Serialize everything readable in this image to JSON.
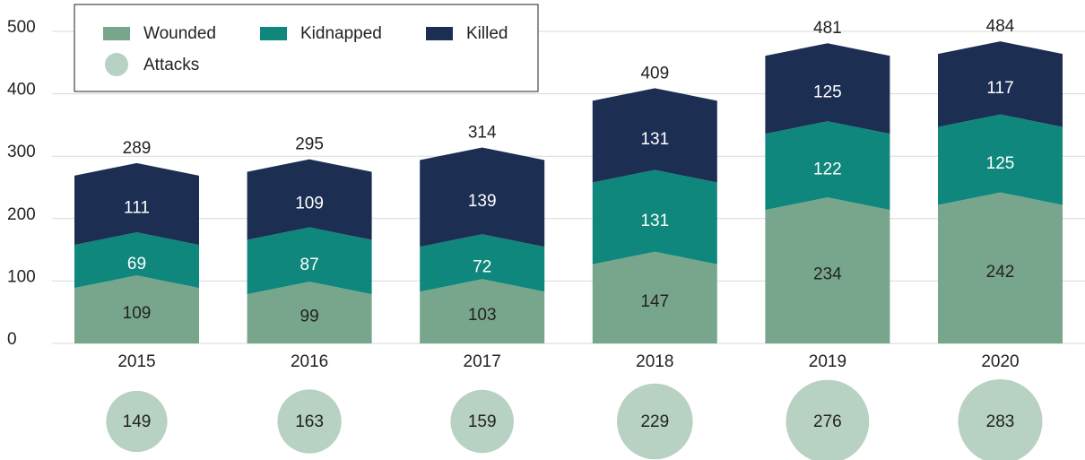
{
  "chart_data": {
    "type": "chevron-stacked-bar",
    "categories": [
      "2015",
      "2016",
      "2017",
      "2018",
      "2019",
      "2020"
    ],
    "series": [
      {
        "name": "Wounded",
        "color": "#78a68c",
        "values": [
          109,
          99,
          103,
          147,
          234,
          242
        ]
      },
      {
        "name": "Kidnapped",
        "color": "#0f877c",
        "values": [
          69,
          87,
          72,
          131,
          122,
          125
        ]
      },
      {
        "name": "Killed",
        "color": "#1c2f52",
        "values": [
          111,
          109,
          139,
          131,
          125,
          117
        ]
      }
    ],
    "totals": [
      289,
      295,
      314,
      409,
      481,
      484
    ],
    "attacks": {
      "name": "Attacks",
      "color": "#b7d1c3",
      "values": [
        149,
        163,
        159,
        229,
        276,
        283
      ]
    },
    "ylim": [
      0,
      500
    ],
    "yticks": [
      0,
      100,
      200,
      300,
      400,
      500
    ],
    "grid": true
  }
}
